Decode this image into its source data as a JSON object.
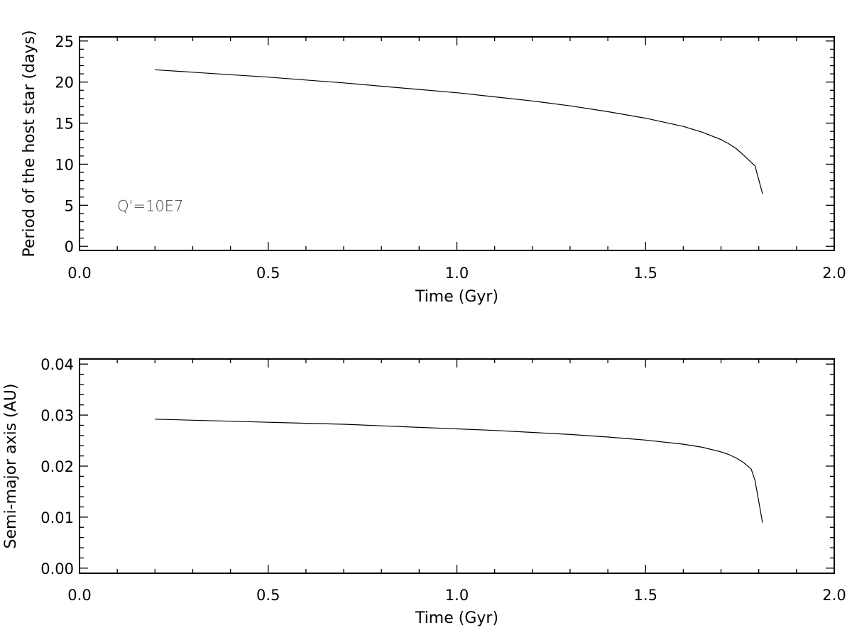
{
  "chart_data": [
    {
      "type": "line",
      "xlabel": "Time (Gyr)",
      "ylabel": "Period of the host star (days)",
      "xlim": [
        0.0,
        2.0
      ],
      "ylim": [
        -0.5,
        25.5
      ],
      "xticks": [
        "0.0",
        "0.5",
        "1.0",
        "1.5",
        "2.0"
      ],
      "yticks": [
        "0",
        "5",
        "10",
        "15",
        "20",
        "25"
      ],
      "ytick_values": [
        0,
        5,
        10,
        15,
        20,
        25
      ],
      "annotation": "Q'=10E7",
      "series": [
        {
          "x": [
            0.2,
            0.3,
            0.4,
            0.5,
            0.6,
            0.7,
            0.8,
            0.9,
            1.0,
            1.1,
            1.2,
            1.3,
            1.4,
            1.5,
            1.6,
            1.65,
            1.7,
            1.72,
            1.74,
            1.76,
            1.78,
            1.79,
            1.81
          ],
          "values": [
            21.5,
            21.2,
            20.9,
            20.6,
            20.25,
            19.9,
            19.5,
            19.1,
            18.7,
            18.2,
            17.7,
            17.1,
            16.4,
            15.6,
            14.6,
            13.9,
            13.0,
            12.5,
            11.9,
            11.1,
            10.2,
            9.8,
            6.4
          ]
        }
      ]
    },
    {
      "type": "line",
      "xlabel": "Time (Gyr)",
      "ylabel": "Semi-major axis (AU)",
      "xlim": [
        0.0,
        2.0
      ],
      "ylim": [
        -0.001,
        0.041
      ],
      "xticks": [
        "0.0",
        "0.5",
        "1.0",
        "1.5",
        "2.0"
      ],
      "yticks": [
        "0.00",
        "0.01",
        "0.02",
        "0.03",
        "0.04"
      ],
      "ytick_values": [
        0.0,
        0.01,
        0.02,
        0.03,
        0.04
      ],
      "series": [
        {
          "x": [
            0.2,
            0.3,
            0.4,
            0.5,
            0.6,
            0.7,
            0.8,
            0.9,
            1.0,
            1.1,
            1.2,
            1.3,
            1.4,
            1.5,
            1.6,
            1.65,
            1.7,
            1.72,
            1.74,
            1.76,
            1.78,
            1.79,
            1.81
          ],
          "values": [
            0.0292,
            0.029,
            0.0288,
            0.0286,
            0.0284,
            0.0282,
            0.0279,
            0.0276,
            0.0273,
            0.027,
            0.0266,
            0.0262,
            0.0257,
            0.0251,
            0.0243,
            0.0237,
            0.0228,
            0.0223,
            0.0216,
            0.0207,
            0.0194,
            0.0172,
            0.0089
          ]
        }
      ]
    }
  ]
}
